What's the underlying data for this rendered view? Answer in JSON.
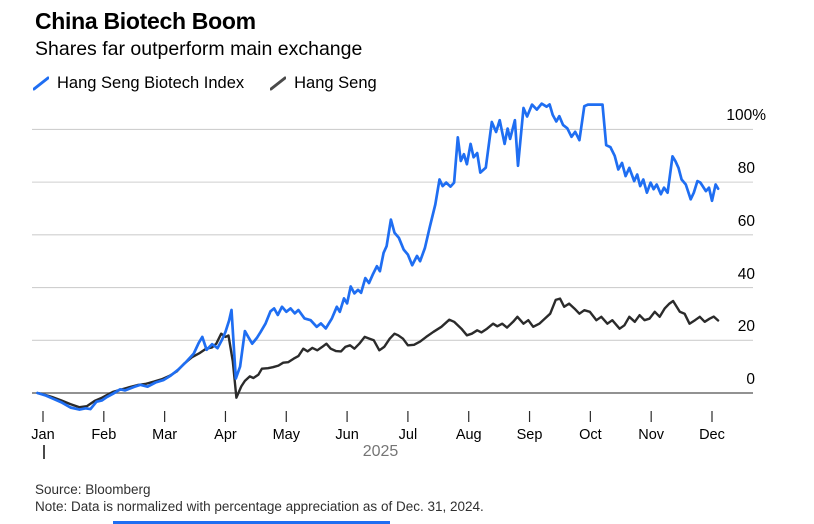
{
  "header": {
    "title": "China Biotech Boom",
    "subtitle": "Shares far outperform main exchange"
  },
  "footer": {
    "source": "Source: Bloomberg",
    "note": "Note: Data is normalized with percentage appreciation as of Dec. 31, 2024."
  },
  "colors": {
    "biotech_line": "#1f6ef2",
    "hang_seng_line": "#2b2b2b",
    "legend_hang_seng_swatch": "#4a4a4a",
    "grid": "#cfcfcf",
    "zero_line": "#6e6e6e",
    "tick": "#2a2a2a",
    "year_label": "#757575",
    "accent_bar": "#1f6ef2"
  },
  "chart_data": {
    "type": "line",
    "title": "China Biotech Boom",
    "subtitle": "Shares far outperform main exchange",
    "grid": "horizontal",
    "legend_position": "top",
    "x_axis": {
      "categories": [
        "Jan",
        "Feb",
        "Mar",
        "Apr",
        "May",
        "Jun",
        "Jul",
        "Aug",
        "Sep",
        "Oct",
        "Nov",
        "Dec"
      ],
      "year_label": "2025",
      "x_unit": "months_from_jan_tick"
    },
    "y_axis": {
      "unit": "percent",
      "range": [
        -8,
        112
      ],
      "ticks": [
        {
          "value": 100,
          "label": "100%"
        },
        {
          "value": 80,
          "label": "80"
        },
        {
          "value": 60,
          "label": "60"
        },
        {
          "value": 40,
          "label": "40"
        },
        {
          "value": 20,
          "label": "20"
        },
        {
          "value": 0,
          "label": "0"
        }
      ]
    },
    "series": [
      {
        "name": "Hang Seng Biotech Index",
        "color": "#1f6ef2",
        "points": [
          [
            -0.09,
            0
          ],
          [
            0.05,
            -1
          ],
          [
            0.15,
            -2
          ],
          [
            0.3,
            -3.5
          ],
          [
            0.45,
            -5.5
          ],
          [
            0.6,
            -6.3
          ],
          [
            0.7,
            -5.8
          ],
          [
            0.78,
            -6.1
          ],
          [
            0.88,
            -3.3
          ],
          [
            0.97,
            -2.8
          ],
          [
            1.05,
            -1.5
          ],
          [
            1.15,
            -0.3
          ],
          [
            1.27,
            1.4
          ],
          [
            1.35,
            1.0
          ],
          [
            1.5,
            2.3
          ],
          [
            1.6,
            3.1
          ],
          [
            1.72,
            2.4
          ],
          [
            1.85,
            4.0
          ],
          [
            1.98,
            4.9
          ],
          [
            2.1,
            6.6
          ],
          [
            2.22,
            8.8
          ],
          [
            2.35,
            11.7
          ],
          [
            2.48,
            15.0
          ],
          [
            2.56,
            19.0
          ],
          [
            2.62,
            21.3
          ],
          [
            2.69,
            16.4
          ],
          [
            2.78,
            18.5
          ],
          [
            2.87,
            17.0
          ],
          [
            2.95,
            20.5
          ],
          [
            3.0,
            23.2
          ],
          [
            3.06,
            27.5
          ],
          [
            3.1,
            31.5
          ],
          [
            3.17,
            5.5
          ],
          [
            3.24,
            10.0
          ],
          [
            3.32,
            23.5
          ],
          [
            3.38,
            21.0
          ],
          [
            3.44,
            18.7
          ],
          [
            3.52,
            21.0
          ],
          [
            3.58,
            23.2
          ],
          [
            3.66,
            26.4
          ],
          [
            3.74,
            31.0
          ],
          [
            3.8,
            32.1
          ],
          [
            3.86,
            29.6
          ],
          [
            3.93,
            32.7
          ],
          [
            4.0,
            30.8
          ],
          [
            4.07,
            32.1
          ],
          [
            4.14,
            30.2
          ],
          [
            4.2,
            31.5
          ],
          [
            4.3,
            28.3
          ],
          [
            4.4,
            27.6
          ],
          [
            4.5,
            25.1
          ],
          [
            4.57,
            26.4
          ],
          [
            4.65,
            24.5
          ],
          [
            4.75,
            28.3
          ],
          [
            4.83,
            32.7
          ],
          [
            4.88,
            30.8
          ],
          [
            4.95,
            35.9
          ],
          [
            5.0,
            34.0
          ],
          [
            5.06,
            40.4
          ],
          [
            5.12,
            37.8
          ],
          [
            5.18,
            39.1
          ],
          [
            5.23,
            38.0
          ],
          [
            5.3,
            43.6
          ],
          [
            5.36,
            41.7
          ],
          [
            5.42,
            44.8
          ],
          [
            5.49,
            48.1
          ],
          [
            5.54,
            46.2
          ],
          [
            5.6,
            53.2
          ],
          [
            5.65,
            55.7
          ],
          [
            5.72,
            65.8
          ],
          [
            5.78,
            60.8
          ],
          [
            5.85,
            58.9
          ],
          [
            5.93,
            54.4
          ],
          [
            6.0,
            52.5
          ],
          [
            6.07,
            48.5
          ],
          [
            6.15,
            52.0
          ],
          [
            6.2,
            50.0
          ],
          [
            6.28,
            55.0
          ],
          [
            6.36,
            63.0
          ],
          [
            6.45,
            71.5
          ],
          [
            6.52,
            81.0
          ],
          [
            6.57,
            78.5
          ],
          [
            6.63,
            79.8
          ],
          [
            6.7,
            78.3
          ],
          [
            6.76,
            79.8
          ],
          [
            6.82,
            97.0
          ],
          [
            6.87,
            88.0
          ],
          [
            6.92,
            90.6
          ],
          [
            6.97,
            86.8
          ],
          [
            7.03,
            94.5
          ],
          [
            7.08,
            89.4
          ],
          [
            7.14,
            91.0
          ],
          [
            7.19,
            83.6
          ],
          [
            7.28,
            85.5
          ],
          [
            7.38,
            102.8
          ],
          [
            7.45,
            99.0
          ],
          [
            7.51,
            103.5
          ],
          [
            7.59,
            94.5
          ],
          [
            7.64,
            100.3
          ],
          [
            7.68,
            96.4
          ],
          [
            7.76,
            103.5
          ],
          [
            7.81,
            86.2
          ],
          [
            7.9,
            108.1
          ],
          [
            7.96,
            104.9
          ],
          [
            8.04,
            109.4
          ],
          [
            8.12,
            107.5
          ],
          [
            8.2,
            109.8
          ],
          [
            8.28,
            108.6
          ],
          [
            8.33,
            109.5
          ],
          [
            8.38,
            105.5
          ],
          [
            8.44,
            103.0
          ],
          [
            8.49,
            105.0
          ],
          [
            8.55,
            101.7
          ],
          [
            8.62,
            100.4
          ],
          [
            8.69,
            97.2
          ],
          [
            8.75,
            99.1
          ],
          [
            8.82,
            95.9
          ],
          [
            8.9,
            108.8
          ],
          [
            8.96,
            109.4
          ],
          [
            9.1,
            109.4
          ],
          [
            9.2,
            109.4
          ],
          [
            9.26,
            94.0
          ],
          [
            9.33,
            93.3
          ],
          [
            9.4,
            90.0
          ],
          [
            9.46,
            84.8
          ],
          [
            9.52,
            87.3
          ],
          [
            9.58,
            82.3
          ],
          [
            9.64,
            85.4
          ],
          [
            9.72,
            80.4
          ],
          [
            9.77,
            82.9
          ],
          [
            9.82,
            78.5
          ],
          [
            9.87,
            81.0
          ],
          [
            9.93,
            76.0
          ],
          [
            9.99,
            79.8
          ],
          [
            10.04,
            77.3
          ],
          [
            10.09,
            79.1
          ],
          [
            10.16,
            75.4
          ],
          [
            10.21,
            77.9
          ],
          [
            10.27,
            76.0
          ],
          [
            10.35,
            89.8
          ],
          [
            10.4,
            87.9
          ],
          [
            10.45,
            85.4
          ],
          [
            10.5,
            81.0
          ],
          [
            10.57,
            79.1
          ],
          [
            10.65,
            73.5
          ],
          [
            10.7,
            76.0
          ],
          [
            10.76,
            80.4
          ],
          [
            10.81,
            79.8
          ],
          [
            10.9,
            76.6
          ],
          [
            10.95,
            77.9
          ],
          [
            11.0,
            72.9
          ],
          [
            11.06,
            79.1
          ],
          [
            11.1,
            77.5
          ]
        ]
      },
      {
        "name": "Hang Seng",
        "color": "#2b2b2b",
        "points": [
          [
            -0.09,
            0
          ],
          [
            0.05,
            -0.8
          ],
          [
            0.15,
            -1.5
          ],
          [
            0.3,
            -2.8
          ],
          [
            0.45,
            -4.2
          ],
          [
            0.6,
            -5.4
          ],
          [
            0.72,
            -5.0
          ],
          [
            0.85,
            -3.0
          ],
          [
            0.97,
            -1.8
          ],
          [
            1.05,
            -0.8
          ],
          [
            1.15,
            0.4
          ],
          [
            1.28,
            1.3
          ],
          [
            1.42,
            2.2
          ],
          [
            1.55,
            3.0
          ],
          [
            1.68,
            3.4
          ],
          [
            1.82,
            4.3
          ],
          [
            1.95,
            5.2
          ],
          [
            2.08,
            6.5
          ],
          [
            2.2,
            8.2
          ],
          [
            2.32,
            11.1
          ],
          [
            2.45,
            13.6
          ],
          [
            2.58,
            15.2
          ],
          [
            2.68,
            16.8
          ],
          [
            2.78,
            17.3
          ],
          [
            2.85,
            18.7
          ],
          [
            2.93,
            22.5
          ],
          [
            3.0,
            21.3
          ],
          [
            3.05,
            21.8
          ],
          [
            3.12,
            12.0
          ],
          [
            3.18,
            -1.8
          ],
          [
            3.26,
            2.5
          ],
          [
            3.32,
            4.6
          ],
          [
            3.4,
            6.3
          ],
          [
            3.46,
            5.7
          ],
          [
            3.54,
            6.9
          ],
          [
            3.6,
            9.2
          ],
          [
            3.7,
            9.4
          ],
          [
            3.78,
            9.8
          ],
          [
            3.87,
            10.4
          ],
          [
            3.95,
            11.5
          ],
          [
            4.03,
            11.7
          ],
          [
            4.12,
            13.0
          ],
          [
            4.2,
            14.0
          ],
          [
            4.28,
            16.8
          ],
          [
            4.35,
            15.8
          ],
          [
            4.43,
            17.1
          ],
          [
            4.51,
            16.2
          ],
          [
            4.59,
            17.5
          ],
          [
            4.66,
            18.7
          ],
          [
            4.73,
            16.8
          ],
          [
            4.82,
            15.9
          ],
          [
            4.9,
            15.8
          ],
          [
            4.97,
            17.5
          ],
          [
            5.05,
            18.1
          ],
          [
            5.12,
            16.8
          ],
          [
            5.2,
            18.7
          ],
          [
            5.29,
            21.3
          ],
          [
            5.37,
            20.6
          ],
          [
            5.44,
            20.0
          ],
          [
            5.53,
            16.2
          ],
          [
            5.61,
            17.5
          ],
          [
            5.7,
            20.6
          ],
          [
            5.78,
            22.5
          ],
          [
            5.84,
            21.9
          ],
          [
            5.92,
            20.6
          ],
          [
            6.0,
            18.1
          ],
          [
            6.1,
            18.3
          ],
          [
            6.2,
            19.5
          ],
          [
            6.3,
            21.3
          ],
          [
            6.42,
            23.2
          ],
          [
            6.55,
            25.1
          ],
          [
            6.68,
            27.8
          ],
          [
            6.76,
            27.0
          ],
          [
            6.88,
            24.4
          ],
          [
            6.97,
            21.9
          ],
          [
            7.05,
            22.5
          ],
          [
            7.14,
            23.8
          ],
          [
            7.21,
            23.0
          ],
          [
            7.3,
            24.4
          ],
          [
            7.4,
            26.3
          ],
          [
            7.47,
            25.3
          ],
          [
            7.55,
            26.3
          ],
          [
            7.63,
            24.8
          ],
          [
            7.73,
            27.0
          ],
          [
            7.8,
            28.9
          ],
          [
            7.9,
            26.3
          ],
          [
            7.98,
            27.6
          ],
          [
            8.06,
            25.1
          ],
          [
            8.16,
            26.3
          ],
          [
            8.25,
            28.2
          ],
          [
            8.34,
            30.1
          ],
          [
            8.43,
            35.3
          ],
          [
            8.5,
            35.8
          ],
          [
            8.57,
            32.7
          ],
          [
            8.65,
            33.9
          ],
          [
            8.74,
            32.0
          ],
          [
            8.82,
            30.1
          ],
          [
            8.9,
            31.4
          ],
          [
            8.99,
            30.8
          ],
          [
            9.1,
            27.6
          ],
          [
            9.18,
            28.9
          ],
          [
            9.28,
            26.3
          ],
          [
            9.36,
            27.6
          ],
          [
            9.48,
            24.4
          ],
          [
            9.56,
            25.7
          ],
          [
            9.64,
            28.9
          ],
          [
            9.73,
            27.0
          ],
          [
            9.81,
            29.5
          ],
          [
            9.89,
            27.6
          ],
          [
            9.97,
            28.2
          ],
          [
            10.06,
            30.8
          ],
          [
            10.14,
            28.9
          ],
          [
            10.22,
            32.0
          ],
          [
            10.3,
            33.9
          ],
          [
            10.36,
            34.9
          ],
          [
            10.47,
            30.8
          ],
          [
            10.55,
            30.1
          ],
          [
            10.63,
            26.3
          ],
          [
            10.72,
            27.6
          ],
          [
            10.8,
            28.9
          ],
          [
            10.88,
            27.0
          ],
          [
            10.96,
            28.2
          ],
          [
            11.03,
            29.0
          ],
          [
            11.1,
            27.5
          ]
        ]
      }
    ]
  }
}
